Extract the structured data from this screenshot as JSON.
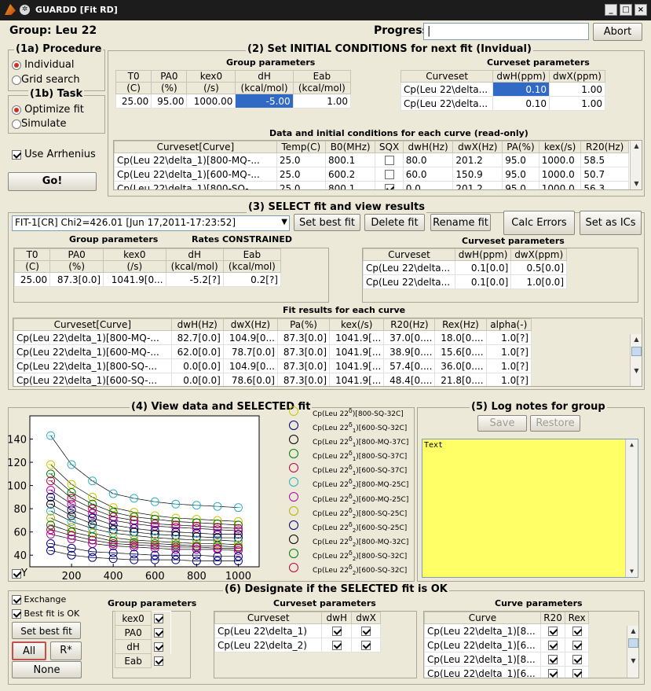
{
  "window": {
    "title": "GUARDD [Fit RD]",
    "controls": [
      "_",
      "□",
      "×"
    ]
  },
  "header": {
    "group_label": "Group: Leu 22",
    "progress_label": "Progress",
    "progress_value": "|",
    "abort_label": "Abort"
  },
  "procedure": {
    "title": "(1a) Procedure",
    "options": [
      "Individual",
      "Grid search"
    ],
    "selected": "Individual"
  },
  "task": {
    "title": "(1b) Task",
    "options": [
      "Optimize fit",
      "Simulate"
    ],
    "selected": "Optimize fit",
    "arrhenius_label": "Use Arrhenius",
    "go_label": "Go!"
  },
  "initial": {
    "title": "(2) Set INITIAL CONDITIONS for next fit (Invidual)",
    "group_params_title": "Group parameters",
    "group_headers": [
      [
        "T0",
        "(C)"
      ],
      [
        "PA0",
        "(%)"
      ],
      [
        "kex0",
        "(/s)"
      ],
      [
        "dH",
        "(kcal/mol)"
      ],
      [
        "Eab",
        "(kcal/mol)"
      ]
    ],
    "group_values": [
      "25.00",
      "95.00",
      "1000.00",
      "-5.00",
      "1.00"
    ],
    "curveset_title": "Curveset parameters",
    "curveset_headers": [
      "Curveset",
      "dwH(ppm)",
      "dwX(ppm)"
    ],
    "curveset_rows": [
      [
        "Cp(Leu 22\\delta...",
        "0.10",
        "1.00"
      ],
      [
        "Cp(Leu 22\\delta...",
        "0.10",
        "1.00"
      ]
    ],
    "data_title": "Data and initial conditions for each curve (read-only)",
    "data_headers": [
      "Curveset[Curve]",
      "Temp(C)",
      "B0(MHz)",
      "SQX",
      "dwH(Hz)",
      "dwX(Hz)",
      "PA(%)",
      "kex(/s)",
      "R20(Hz)"
    ],
    "data_rows": [
      [
        "Cp(Leu 22\\delta_1)[800-MQ-...",
        "25.0",
        "800.1",
        "",
        "80.0",
        "201.2",
        "95.0",
        "1000.0",
        "58.5"
      ],
      [
        "Cp(Leu 22\\delta_1)[600-MQ-...",
        "25.0",
        "600.2",
        "",
        "60.0",
        "150.9",
        "95.0",
        "1000.0",
        "50.7"
      ],
      [
        "Cp(Leu 22\\delta_1)[800-SQ-...",
        "25.0",
        "800.1",
        "",
        "0.0",
        "201.2",
        "95.0",
        "1000.0",
        "56.3"
      ]
    ],
    "data_sqx": [
      false,
      false,
      true
    ]
  },
  "select": {
    "title": "(3) SELECT fit and view results",
    "fit_selected": "FIT-1[CR] Chi2=426.01 [Jun 17,2011-17:23:52]",
    "buttons": {
      "set_best": "Set best fit",
      "delete": "Delete fit",
      "rename": "Rename fit",
      "calc_errors": "Calc Errors",
      "set_ics": "Set as ICs"
    },
    "group_params_title": "Group parameters",
    "rates_label": "Rates CONSTRAINED",
    "group_headers": [
      [
        "T0",
        "(C)"
      ],
      [
        "PA0",
        "(%)"
      ],
      [
        "kex0",
        "(/s)"
      ],
      [
        "dH",
        "(kcal/mol)"
      ],
      [
        "Eab",
        "(kcal/mol)"
      ]
    ],
    "group_values": [
      "25.00",
      "87.3[0.0]",
      "1041.9[0...",
      "-5.2[?]",
      "0.2[?]"
    ],
    "curveset_title": "Curveset parameters",
    "curveset_headers": [
      "Curveset",
      "dwH(ppm)",
      "dwX(ppm)"
    ],
    "curveset_rows": [
      [
        "Cp(Leu 22\\delta...",
        "0.1[0.0]",
        "0.5[0.0]"
      ],
      [
        "Cp(Leu 22\\delta...",
        "0.1[0.0]",
        "1.0[0.0]"
      ]
    ],
    "fit_title": "Fit results for each curve",
    "fit_headers": [
      "Curveset[Curve]",
      "dwH(Hz)",
      "dwX(Hz)",
      "Pa(%)",
      "kex(/s)",
      "R20(Hz)",
      "Rex(Hz)",
      "alpha(-)"
    ],
    "fit_rows": [
      [
        "Cp(Leu 22\\delta_1)[800-MQ-...",
        "82.7[0.0]",
        "104.9[0...",
        "87.3[0.0]",
        "1041.9[...",
        "37.0[0....",
        "18.0[0....",
        "1.0[?]"
      ],
      [
        "Cp(Leu 22\\delta_1)[600-MQ-...",
        "62.0[0.0]",
        "78.7[0.0]",
        "87.3[0.0]",
        "1041.9[...",
        "38.9[0....",
        "15.6[0....",
        "1.0[?]"
      ],
      [
        "Cp(Leu 22\\delta_1)[800-SQ-...",
        "0.0[0.0]",
        "104.9[0...",
        "87.3[0.0]",
        "1041.9[...",
        "57.4[0....",
        "36.0[0....",
        "1.0[?]"
      ],
      [
        "Cp(Leu 22\\delta_1)[600-SQ-...",
        "0.0[0.0]",
        "78.6[0.0]",
        "87.3[0.0]",
        "1041.9[...",
        "48.4[0....",
        "21.8[0....",
        "1.0[?]"
      ]
    ]
  },
  "view": {
    "title": "(4) View data and SELECTED fit",
    "y_checkbox": "Y",
    "y_ticks": [
      "140",
      "120",
      "100",
      "80",
      "60",
      "40"
    ],
    "x_ticks": [
      "200",
      "400",
      "600",
      "800",
      "1000"
    ],
    "legend": [
      {
        "base": "Cp(Leu 22",
        "sub": "δ",
        "idx": "",
        "rest": ")[800-SQ-32C]",
        "color": "#c8c800"
      },
      {
        "base": "Cp(Leu 22",
        "sub": "δ",
        "idx": "1",
        "rest": ")[600-SQ-32C]",
        "color": "#000080"
      },
      {
        "base": "Cp(Leu 22",
        "sub": "δ",
        "idx": "1",
        "rest": ")[800-MQ-37C]",
        "color": "#000000"
      },
      {
        "base": "Cp(Leu 22",
        "sub": "δ",
        "idx": "1",
        "rest": ")[800-SQ-37C]",
        "color": "#008000"
      },
      {
        "base": "Cp(Leu 22",
        "sub": "δ",
        "idx": "1",
        "rest": ")[600-SQ-37C]",
        "color": "#c00040"
      },
      {
        "base": "Cp(Leu 22",
        "sub": "δ",
        "idx": "2",
        "rest": ")[800-MQ-25C]",
        "color": "#30b0c0"
      },
      {
        "base": "Cp(Leu 22",
        "sub": "δ",
        "idx": "2",
        "rest": ")[600-MQ-25C]",
        "color": "#b000b0"
      },
      {
        "base": "Cp(Leu 22",
        "sub": "δ",
        "idx": "2",
        "rest": ")[800-SQ-25C]",
        "color": "#c0b000"
      },
      {
        "base": "Cp(Leu 22",
        "sub": "δ",
        "idx": "2",
        "rest": ")[600-SQ-25C]",
        "color": "#000080"
      },
      {
        "base": "Cp(Leu 22",
        "sub": "δ",
        "idx": "2",
        "rest": ")[800-MQ-32C]",
        "color": "#000000"
      },
      {
        "base": "Cp(Leu 22",
        "sub": "δ",
        "idx": "2",
        "rest": ")[800-SQ-32C]",
        "color": "#008000"
      },
      {
        "base": "Cp(Leu 22",
        "sub": "δ",
        "idx": "2",
        "rest": ")[600-SQ-32C]",
        "color": "#c00040"
      }
    ]
  },
  "chart_data": {
    "type": "scatter",
    "title": "",
    "xlabel": "",
    "ylabel": "",
    "xlim": [
      0,
      1100
    ],
    "ylim": [
      30,
      160
    ],
    "x": [
      100,
      200,
      300,
      400,
      500,
      600,
      700,
      800,
      900,
      1000
    ],
    "series": [
      {
        "color": "#30b0c0",
        "values": [
          143,
          118,
          104,
          93,
          89,
          86,
          84,
          83,
          82,
          81
        ]
      },
      {
        "color": "#c8c800",
        "values": [
          118,
          101,
          90,
          81,
          77,
          74,
          72,
          71,
          70,
          69
        ]
      },
      {
        "color": "#008000",
        "values": [
          110,
          94,
          84,
          77,
          73,
          71,
          69,
          68,
          67,
          66
        ]
      },
      {
        "color": "#c00040",
        "values": [
          104,
          89,
          80,
          73,
          70,
          67,
          66,
          65,
          64,
          63
        ]
      },
      {
        "color": "#b000b0",
        "values": [
          96,
          84,
          76,
          70,
          67,
          65,
          64,
          63,
          62,
          61
        ]
      },
      {
        "color": "#000080",
        "values": [
          90,
          79,
          72,
          66,
          63,
          61,
          60,
          59,
          58,
          58
        ]
      },
      {
        "color": "#000000",
        "values": [
          84,
          74,
          67,
          62,
          60,
          58,
          57,
          56,
          55,
          55
        ]
      },
      {
        "color": "#30b0c0",
        "values": [
          78,
          69,
          63,
          59,
          57,
          55,
          54,
          53,
          53,
          52
        ]
      },
      {
        "color": "#c0b000",
        "values": [
          72,
          64,
          59,
          55,
          53,
          52,
          51,
          50,
          50,
          49
        ]
      },
      {
        "color": "#008000",
        "values": [
          66,
          60,
          56,
          52,
          51,
          50,
          49,
          48,
          48,
          47
        ]
      },
      {
        "color": "#c00040",
        "values": [
          62,
          57,
          53,
          50,
          49,
          48,
          47,
          47,
          46,
          46
        ]
      },
      {
        "color": "#b000b0",
        "values": [
          58,
          54,
          50,
          48,
          47,
          46,
          45,
          45,
          45,
          44
        ]
      },
      {
        "color": "#000080",
        "values": [
          50,
          46,
          43,
          42,
          41,
          40,
          40,
          40,
          39,
          39
        ]
      },
      {
        "color": "#000080",
        "values": [
          44,
          40,
          38,
          37,
          36,
          36,
          36,
          35,
          35,
          35
        ]
      }
    ]
  },
  "log": {
    "title": "(5) Log notes for group",
    "save_label": "Save",
    "restore_label": "Restore",
    "text": "Text"
  },
  "designate": {
    "title": "(6) Designate if the SELECTED fit is OK",
    "exchange_label": "Exchange",
    "bestfit_label": "Best fit is OK",
    "set_best_label": "Set best fit",
    "all_label": "All",
    "rstar_label": "R*",
    "none_label": "None",
    "group_title": "Group parameters",
    "group_items": [
      "kex0",
      "PA0",
      "dH",
      "Eab"
    ],
    "curveset_title": "Curveset parameters",
    "curveset_headers": [
      "Curveset",
      "dwH",
      "dwX"
    ],
    "curveset_rows": [
      "Cp(Leu 22\\delta_1)",
      "Cp(Leu 22\\delta_2)"
    ],
    "curve_title": "Curve parameters",
    "curve_headers": [
      "Curve",
      "R20",
      "Rex"
    ],
    "curve_rows": [
      "Cp(Leu 22\\delta_1)[8...",
      "Cp(Leu 22\\delta_1)[6...",
      "Cp(Leu 22\\delta_1)[8...",
      "Cp(Leu 22\\delta_1)[6..."
    ]
  }
}
